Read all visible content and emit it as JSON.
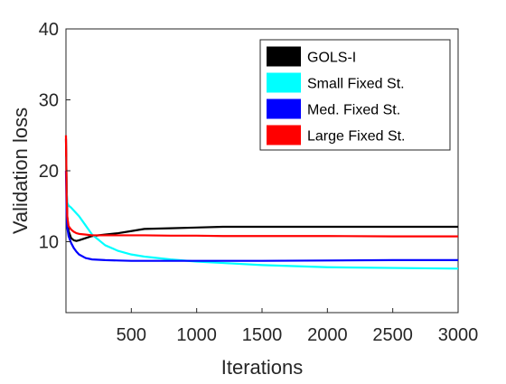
{
  "chart_data": {
    "type": "line",
    "title": "",
    "xlabel": "Iterations",
    "ylabel": "Validation loss",
    "xlim": [
      0,
      3000
    ],
    "ylim": [
      0,
      40
    ],
    "xticks": [
      500,
      1000,
      1500,
      2000,
      2500,
      3000
    ],
    "xtick_labels": [
      "500",
      "1000",
      "1500",
      "2000",
      "2500",
      "3000"
    ],
    "yticks": [
      10,
      20,
      30,
      40
    ],
    "ytick_labels": [
      "10",
      "20",
      "30",
      "40"
    ],
    "grid": false,
    "legend_position": "top-right",
    "series": [
      {
        "name": "GOLS-I",
        "color": "#000000",
        "x": [
          0,
          5,
          10,
          20,
          40,
          60,
          80,
          100,
          150,
          200,
          300,
          400,
          500,
          600,
          800,
          1000,
          1200,
          1500,
          2000,
          2500,
          3000
        ],
        "y": [
          24.5,
          18,
          13.5,
          11.5,
          10.5,
          10.2,
          10.1,
          10.2,
          10.5,
          10.8,
          11.0,
          11.2,
          11.5,
          11.8,
          11.9,
          12.0,
          12.1,
          12.1,
          12.1,
          12.1,
          12.1
        ]
      },
      {
        "name": "Small Fixed St.",
        "color": "#00FFFF",
        "x": [
          0,
          5,
          10,
          20,
          40,
          60,
          80,
          100,
          150,
          200,
          300,
          400,
          500,
          600,
          800,
          1000,
          1200,
          1500,
          2000,
          2500,
          3000
        ],
        "y": [
          22.0,
          17.0,
          15.5,
          15.1,
          14.8,
          14.4,
          14.0,
          13.6,
          12.3,
          11.0,
          9.5,
          8.7,
          8.2,
          7.9,
          7.5,
          7.2,
          7.0,
          6.7,
          6.4,
          6.3,
          6.2
        ]
      },
      {
        "name": "Med. Fixed St.",
        "color": "#0000FF",
        "x": [
          0,
          5,
          10,
          20,
          40,
          60,
          80,
          100,
          150,
          200,
          300,
          400,
          500,
          600,
          800,
          1000,
          1200,
          1500,
          2000,
          2500,
          3000
        ],
        "y": [
          20.0,
          14.0,
          12.0,
          10.8,
          9.8,
          9.1,
          8.6,
          8.2,
          7.7,
          7.5,
          7.4,
          7.35,
          7.3,
          7.3,
          7.3,
          7.3,
          7.3,
          7.3,
          7.35,
          7.4,
          7.4
        ]
      },
      {
        "name": "Large Fixed St.",
        "color": "#FF0000",
        "x": [
          0,
          5,
          10,
          20,
          40,
          60,
          80,
          100,
          150,
          200,
          300,
          400,
          500,
          600,
          800,
          1000,
          1200,
          1500,
          2000,
          2500,
          3000
        ],
        "y": [
          25.0,
          16.5,
          13.5,
          12.2,
          11.7,
          11.4,
          11.2,
          11.1,
          11.0,
          10.9,
          10.9,
          10.9,
          10.9,
          10.9,
          10.85,
          10.85,
          10.8,
          10.8,
          10.8,
          10.75,
          10.75
        ]
      }
    ]
  }
}
